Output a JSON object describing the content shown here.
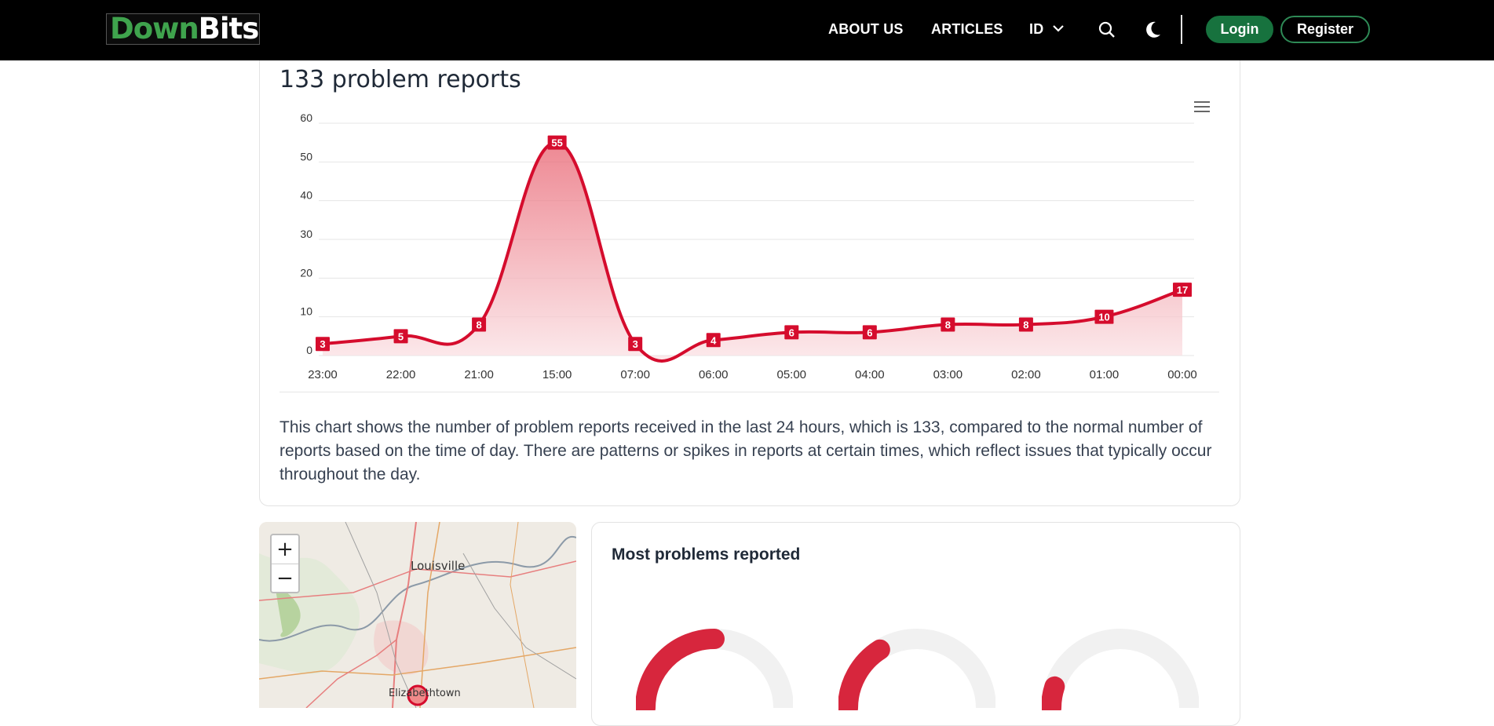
{
  "nav": {
    "logo_down": "Down",
    "logo_bits": "Bits",
    "about": "ABOUT US",
    "articles": "ARTICLES",
    "lang": "ID",
    "login": "Login",
    "register": "Register",
    "icons": [
      "search-icon",
      "moon-icon",
      "chevron-down-icon"
    ]
  },
  "chart_card": {
    "title": "133 problem reports",
    "description": "This chart shows the number of problem reports received in the last 24 hours, which is 133, compared to the normal number of reports based on the time of day. There are patterns or spikes in reports at certain times, which reflect issues that typically occur throughout the day."
  },
  "chart_data": {
    "type": "area",
    "categories": [
      "23:00",
      "22:00",
      "21:00",
      "15:00",
      "07:00",
      "06:00",
      "05:00",
      "04:00",
      "03:00",
      "02:00",
      "01:00",
      "00:00"
    ],
    "values": [
      3,
      5,
      8,
      55,
      3,
      4,
      6,
      6,
      8,
      8,
      10,
      17
    ],
    "yticks": [
      0,
      10,
      20,
      30,
      40,
      50,
      60
    ],
    "ylim": [
      0,
      60
    ],
    "grid": true,
    "data_labels": true,
    "colors": {
      "line": "#d50c2d",
      "fill_top": "#e8616f",
      "fill_bottom": "#fbe3e6",
      "label_bg": "#d50c2d"
    }
  },
  "map": {
    "zoom_in": "+",
    "zoom_out": "−",
    "labels": [
      "Louisville",
      "Elizabethtown"
    ]
  },
  "problems": {
    "title": "Most problems reported",
    "gauges": [
      {
        "fraction": 0.5,
        "color": "#d7263d"
      },
      {
        "fraction": 0.32,
        "color": "#d7263d"
      },
      {
        "fraction": 0.1,
        "color": "#d7263d"
      }
    ]
  }
}
